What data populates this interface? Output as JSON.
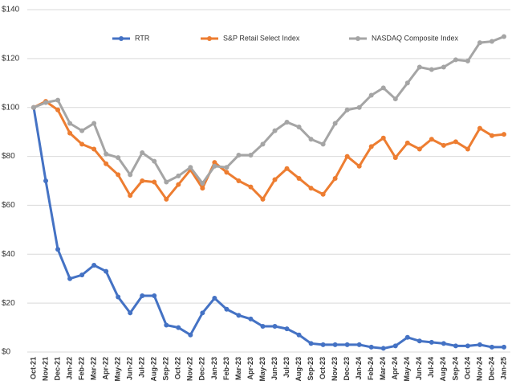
{
  "chart_data": {
    "type": "line",
    "categories": [
      "Oct-21",
      "Nov-21",
      "Dec-21",
      "Jan-22",
      "Feb-22",
      "Mar-22",
      "Apr-22",
      "May-22",
      "Jun-22",
      "Jul-22",
      "Aug-22",
      "Sep-22",
      "Oct-22",
      "Nov-22",
      "Dec-22",
      "Jan-23",
      "Feb-23",
      "Mar-23",
      "Apr-23",
      "May-23",
      "Jun-23",
      "Jul-23",
      "Aug-23",
      "Sep-23",
      "Oct-23",
      "Nov-23",
      "Dec-23",
      "Jan-24",
      "Feb-24",
      "Mar-24",
      "Apr-24",
      "May-24",
      "Jun-24",
      "Jul-24",
      "Aug-24",
      "Sep-24",
      "Oct-24",
      "Nov-24",
      "Dec-24",
      "Jan-25"
    ],
    "series": [
      {
        "name": "RTR",
        "color": "#4472c4",
        "values": [
          100,
          70,
          42,
          30,
          31.5,
          35.5,
          33,
          22.5,
          16,
          23,
          23,
          11,
          10,
          7,
          16,
          22,
          17.5,
          15,
          13.5,
          10.5,
          10.5,
          9.5,
          7,
          3.5,
          3,
          3,
          3,
          3,
          2,
          1.5,
          2.5,
          6,
          4.5,
          4,
          3.5,
          2.5,
          2.5,
          3,
          2,
          2
        ]
      },
      {
        "name": "S&P Retail Select Index",
        "color": "#ed7d31",
        "values": [
          100,
          102.5,
          99,
          89.5,
          85,
          83,
          77,
          72.5,
          64,
          70,
          69.5,
          62.5,
          68.5,
          74.5,
          67,
          77.5,
          73.5,
          70,
          67.5,
          62.5,
          70.5,
          75,
          71,
          67,
          64.5,
          71,
          80,
          76,
          84,
          87.5,
          79.5,
          85.5,
          83,
          87,
          84.5,
          86,
          83,
          91.5,
          88.5,
          89
        ]
      },
      {
        "name": "NASDAQ Composite Index",
        "color": "#a5a5a5",
        "values": [
          100,
          102,
          103,
          93.5,
          90.5,
          93.5,
          81,
          79.5,
          72.5,
          81.5,
          78,
          69.5,
          72,
          75.5,
          69,
          76,
          75.5,
          80.5,
          80.5,
          85,
          90.5,
          94,
          92,
          87,
          85,
          93.5,
          99,
          100,
          105,
          108,
          103.5,
          110,
          116.5,
          115.5,
          116.5,
          119.5,
          119,
          126.5,
          127,
          129
        ]
      }
    ],
    "ylim": [
      0,
      140
    ],
    "yticks": [
      {
        "value": 0,
        "label": "$0"
      },
      {
        "value": 20,
        "label": "$20"
      },
      {
        "value": 40,
        "label": "$40"
      },
      {
        "value": 60,
        "label": "$60"
      },
      {
        "value": 80,
        "label": "$80"
      },
      {
        "value": 100,
        "label": "$100"
      },
      {
        "value": 120,
        "label": "$120"
      },
      {
        "value": 140,
        "label": "$140"
      }
    ],
    "grid": true,
    "legend": "top"
  }
}
